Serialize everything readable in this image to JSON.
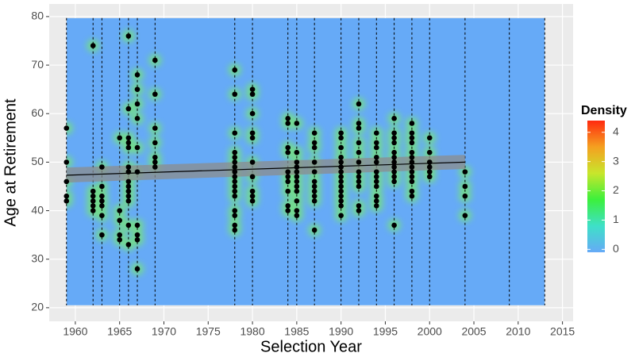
{
  "chart_data": {
    "type": "scatter",
    "xlabel": "Selection Year",
    "ylabel": "Age at Retirement",
    "xlim": [
      1957.05,
      2016.2
    ],
    "ylim": [
      17.2,
      82.6
    ],
    "xticks": [
      1960,
      1965,
      1970,
      1975,
      1980,
      1985,
      1990,
      1995,
      2000,
      2005,
      2010,
      2015
    ],
    "yticks": [
      20,
      30,
      40,
      50,
      60,
      70,
      80
    ],
    "grid": true,
    "vlines": [
      1959,
      1962,
      1963,
      1965,
      1966,
      1967,
      1969,
      1978,
      1980,
      1984,
      1985,
      1987,
      1990,
      1992,
      1994,
      1996,
      1998,
      2000,
      2004,
      2009,
      2013
    ],
    "density_extent": {
      "x": [
        1959,
        2013
      ],
      "y": [
        20.5,
        79.7
      ]
    },
    "point_color": "#000000",
    "glow_color": "#7dff3a",
    "x": [
      1959,
      1959,
      1959,
      1959,
      1959,
      1962,
      1962,
      1962,
      1962,
      1962,
      1962,
      1963,
      1963,
      1963,
      1963,
      1963,
      1963,
      1963,
      1965,
      1965,
      1965,
      1965,
      1965,
      1966,
      1966,
      1966,
      1966,
      1966,
      1966,
      1966,
      1966,
      1966,
      1966,
      1966,
      1966,
      1966,
      1966,
      1967,
      1967,
      1967,
      1967,
      1967,
      1967,
      1967,
      1967,
      1967,
      1967,
      1969,
      1969,
      1969,
      1969,
      1969,
      1969,
      1969,
      1978,
      1978,
      1978,
      1978,
      1978,
      1978,
      1978,
      1978,
      1978,
      1978,
      1978,
      1978,
      1978,
      1978,
      1978,
      1978,
      1978,
      1980,
      1980,
      1980,
      1980,
      1980,
      1980,
      1980,
      1980,
      1980,
      1980,
      1984,
      1984,
      1984,
      1984,
      1984,
      1984,
      1984,
      1984,
      1984,
      1984,
      1985,
      1985,
      1985,
      1985,
      1985,
      1985,
      1985,
      1985,
      1985,
      1985,
      1985,
      1985,
      1987,
      1987,
      1987,
      1987,
      1987,
      1987,
      1987,
      1987,
      1987,
      1987,
      1987,
      1990,
      1990,
      1990,
      1990,
      1990,
      1990,
      1990,
      1990,
      1990,
      1990,
      1990,
      1990,
      1990,
      1990,
      1990,
      1992,
      1992,
      1992,
      1992,
      1992,
      1992,
      1992,
      1992,
      1992,
      1992,
      1992,
      1992,
      1994,
      1994,
      1994,
      1994,
      1994,
      1994,
      1994,
      1994,
      1994,
      1994,
      1994,
      1994,
      1996,
      1996,
      1996,
      1996,
      1996,
      1996,
      1996,
      1996,
      1996,
      1996,
      1996,
      1996,
      1998,
      1998,
      1998,
      1998,
      1998,
      1998,
      1998,
      1998,
      1998,
      1998,
      1998,
      1998,
      1998,
      2000,
      2000,
      2000,
      2000,
      2000,
      2000,
      2004,
      2004,
      2004,
      2004
    ],
    "values": [
      57,
      50,
      46,
      43,
      42,
      74,
      44,
      43,
      42,
      41,
      40,
      49,
      45,
      43,
      42,
      41,
      39,
      35,
      55,
      40,
      38,
      35,
      34,
      76,
      61,
      55,
      54,
      53,
      49,
      48,
      46,
      45,
      44,
      43,
      42,
      37,
      33,
      68,
      65,
      62,
      59,
      53,
      48,
      37,
      35,
      34,
      28,
      71,
      64,
      57,
      54,
      51,
      50,
      49,
      69,
      64,
      56,
      52,
      51,
      50,
      49,
      48,
      47,
      46,
      45,
      44,
      43,
      40,
      39,
      37,
      36,
      65,
      64,
      60,
      56,
      55,
      50,
      47,
      44,
      43,
      42,
      59,
      58,
      53,
      52,
      48,
      47,
      46,
      44,
      41,
      40,
      58,
      52,
      50,
      49,
      48,
      47,
      46,
      45,
      44,
      42,
      40,
      39,
      56,
      54,
      53,
      50,
      48,
      46,
      45,
      44,
      43,
      42,
      36,
      56,
      55,
      53,
      51,
      50,
      49,
      48,
      47,
      46,
      45,
      44,
      43,
      42,
      41,
      39,
      62,
      58,
      57,
      54,
      52,
      50,
      48,
      47,
      46,
      45,
      41,
      40,
      56,
      54,
      53,
      51,
      50,
      48,
      47,
      46,
      45,
      43,
      42,
      41,
      59,
      56,
      55,
      54,
      52,
      51,
      50,
      49,
      48,
      47,
      46,
      37,
      58,
      56,
      55,
      54,
      52,
      51,
      50,
      49,
      48,
      47,
      46,
      44,
      43,
      55,
      52,
      50,
      49,
      48,
      47,
      48,
      45,
      43,
      39
    ],
    "trend": {
      "x": [
        1959,
        2004
      ],
      "y": [
        47.3,
        50.0
      ],
      "lower": [
        45.8,
        48.6
      ],
      "upper": [
        48.9,
        51.5
      ],
      "color": "#000000",
      "band_color": "#8c8c8c"
    },
    "legend": {
      "title": "Density",
      "ticks": [
        0,
        1,
        2,
        3,
        4
      ],
      "lim": [
        -0.1,
        4.4
      ],
      "colors": [
        "#66aaf7",
        "#3ee0c8",
        "#3cf03c",
        "#c8e62c",
        "#f5a020",
        "#ff2a10"
      ]
    }
  }
}
